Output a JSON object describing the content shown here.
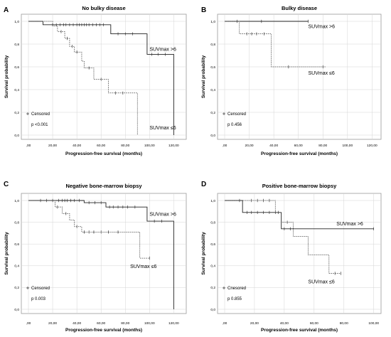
{
  "shared": {
    "ylabel": "Survival probability",
    "xlabel": "Progression-free survival (months)",
    "xticks": [
      0,
      20,
      40,
      60,
      80,
      100,
      120
    ],
    "xtick_labels": [
      ",00",
      "20,00",
      "40,00",
      "60,00",
      "80,00",
      "100,00",
      "120,00"
    ],
    "yticks": [
      0,
      0.2,
      0.4,
      0.6,
      0.8,
      1.0
    ],
    "ytick_labels": [
      "0,0",
      "0,2",
      "0,4",
      "0,6",
      "0,8",
      "1,0"
    ]
  },
  "chart_data": [
    {
      "type": "line",
      "letter": "A",
      "title": "No bulky disease",
      "xlabel": "Progression-free survival (months)",
      "ylabel": "Survival probability",
      "xlim": [
        0,
        128
      ],
      "ylim": [
        0,
        1
      ],
      "grid": true,
      "legend_text": "Censored",
      "p_text": "p <0.001",
      "series": [
        {
          "name": "SUVmax >6",
          "style": "solid",
          "steps": [
            [
              0,
              1.0
            ],
            [
              12,
              0.97
            ],
            [
              68,
              0.89
            ],
            [
              98,
              0.71
            ],
            [
              120,
              0.0
            ]
          ],
          "censored": [
            [
              20,
              0.97
            ],
            [
              23,
              0.97
            ],
            [
              26,
              0.97
            ],
            [
              29,
              0.97
            ],
            [
              31,
              0.97
            ],
            [
              34,
              0.97
            ],
            [
              37,
              0.97
            ],
            [
              40,
              0.97
            ],
            [
              42,
              0.97
            ],
            [
              44,
              0.97
            ],
            [
              46,
              0.97
            ],
            [
              48,
              0.97
            ],
            [
              50,
              0.97
            ],
            [
              53,
              0.97
            ],
            [
              56,
              0.97
            ],
            [
              59,
              0.97
            ],
            [
              62,
              0.97
            ],
            [
              74,
              0.89
            ],
            [
              80,
              0.89
            ],
            [
              86,
              0.89
            ],
            [
              102,
              0.71
            ],
            [
              107,
              0.71
            ],
            [
              113,
              0.71
            ]
          ]
        },
        {
          "name": "SUVmax ≤6",
          "style": "dashed",
          "steps": [
            [
              0,
              1.0
            ],
            [
              20,
              0.96
            ],
            [
              24,
              0.91
            ],
            [
              30,
              0.85
            ],
            [
              34,
              0.78
            ],
            [
              38,
              0.73
            ],
            [
              44,
              0.65
            ],
            [
              46,
              0.59
            ],
            [
              54,
              0.49
            ],
            [
              66,
              0.37
            ],
            [
              90,
              0.0
            ]
          ],
          "censored": [
            [
              27,
              0.91
            ],
            [
              32,
              0.85
            ],
            [
              36,
              0.78
            ],
            [
              40,
              0.73
            ],
            [
              50,
              0.59
            ],
            [
              60,
              0.49
            ],
            [
              72,
              0.37
            ],
            [
              78,
              0.37
            ]
          ]
        }
      ],
      "labels": [
        {
          "text": "SUVmax >6",
          "x": 100,
          "y": 0.74
        },
        {
          "text": "SUVmax ≤6",
          "x": 100,
          "y": 0.05
        }
      ]
    },
    {
      "type": "line",
      "letter": "B",
      "title": "Bulky disease",
      "xlabel": "Progression-free survival (months)",
      "ylabel": "Survival probability",
      "xlim": [
        0,
        125
      ],
      "ylim": [
        0,
        1
      ],
      "grid": true,
      "legend_text": "Censored",
      "p_text": "p 0.456",
      "series": [
        {
          "name": "SUVmax >6",
          "style": "solid",
          "steps": [
            [
              0,
              1.0
            ],
            [
              68,
              1.0
            ]
          ],
          "censored": [
            [
              10,
              1.0
            ],
            [
              30,
              1.0
            ],
            [
              68,
              1.0
            ]
          ]
        },
        {
          "name": "SUVmax ≤6",
          "style": "dashed",
          "steps": [
            [
              0,
              1.0
            ],
            [
              12,
              0.89
            ],
            [
              38,
              0.6
            ],
            [
              82,
              0.6
            ]
          ],
          "censored": [
            [
              18,
              0.89
            ],
            [
              22,
              0.89
            ],
            [
              26,
              0.89
            ],
            [
              32,
              0.89
            ],
            [
              52,
              0.6
            ],
            [
              80,
              0.6
            ]
          ]
        }
      ],
      "labels": [
        {
          "text": "SUVmax >6",
          "x": 68,
          "y": 0.94
        },
        {
          "text": "SUVmax ≤6",
          "x": 68,
          "y": 0.53
        }
      ]
    },
    {
      "type": "line",
      "letter": "C",
      "title": "Negative bone-marrow biopsy",
      "xlabel": "Progression-free survival (months)",
      "ylabel": "Survival probability",
      "xlim": [
        0,
        128
      ],
      "ylim": [
        0,
        1
      ],
      "grid": true,
      "legend_text": "Censored",
      "p_text": "p 0.003",
      "series": [
        {
          "name": "SUVmax >6",
          "style": "solid",
          "steps": [
            [
              0,
              1.0
            ],
            [
              46,
              0.98
            ],
            [
              64,
              0.94
            ],
            [
              98,
              0.81
            ],
            [
              120,
              0.0
            ]
          ],
          "censored": [
            [
              10,
              1.0
            ],
            [
              15,
              1.0
            ],
            [
              20,
              1.0
            ],
            [
              25,
              1.0
            ],
            [
              28,
              1.0
            ],
            [
              30,
              1.0
            ],
            [
              32,
              1.0
            ],
            [
              35,
              1.0
            ],
            [
              38,
              1.0
            ],
            [
              42,
              1.0
            ],
            [
              50,
              0.98
            ],
            [
              55,
              0.98
            ],
            [
              60,
              0.98
            ],
            [
              67,
              0.94
            ],
            [
              70,
              0.94
            ],
            [
              74,
              0.94
            ],
            [
              78,
              0.94
            ],
            [
              82,
              0.94
            ],
            [
              88,
              0.94
            ],
            [
              104,
              0.81
            ],
            [
              110,
              0.81
            ]
          ]
        },
        {
          "name": "SUVmax ≤6",
          "style": "dashed",
          "steps": [
            [
              0,
              1.0
            ],
            [
              22,
              0.94
            ],
            [
              28,
              0.88
            ],
            [
              34,
              0.82
            ],
            [
              38,
              0.76
            ],
            [
              44,
              0.71
            ],
            [
              92,
              0.47
            ],
            [
              100,
              0.47
            ]
          ],
          "censored": [
            [
              24,
              0.94
            ],
            [
              31,
              0.88
            ],
            [
              40,
              0.76
            ],
            [
              46,
              0.71
            ],
            [
              50,
              0.71
            ],
            [
              54,
              0.71
            ],
            [
              60,
              0.71
            ],
            [
              66,
              0.71
            ],
            [
              74,
              0.71
            ],
            [
              100,
              0.47
            ]
          ]
        }
      ],
      "labels": [
        {
          "text": "SUVmax >6",
          "x": 100,
          "y": 0.86
        },
        {
          "text": "SUVmax ≤6",
          "x": 84,
          "y": 0.38
        }
      ]
    },
    {
      "type": "line",
      "letter": "D",
      "title": "Positive bone-marrow biopsy",
      "xlabel": "Progression-free survival (months)",
      "ylabel": "Survival probability",
      "xlim": [
        0,
        103
      ],
      "ylim": [
        0,
        1
      ],
      "grid": true,
      "legend_text": "Cnesored",
      "p_text": "p 0.855",
      "series": [
        {
          "name": "SUVmax >6",
          "style": "solid",
          "steps": [
            [
              0,
              1.0
            ],
            [
              12,
              0.89
            ],
            [
              38,
              0.74
            ],
            [
              100,
              0.74
            ]
          ],
          "censored": [
            [
              15,
              0.89
            ],
            [
              18,
              0.89
            ],
            [
              22,
              0.89
            ],
            [
              26,
              0.89
            ],
            [
              30,
              0.89
            ],
            [
              34,
              0.89
            ],
            [
              40,
              0.74
            ],
            [
              44,
              0.74
            ],
            [
              100,
              0.74
            ]
          ]
        },
        {
          "name": "SUVmax ≤6",
          "style": "dashed",
          "steps": [
            [
              0,
              1.0
            ],
            [
              34,
              0.89
            ],
            [
              38,
              0.8
            ],
            [
              46,
              0.67
            ],
            [
              56,
              0.5
            ],
            [
              70,
              0.33
            ],
            [
              78,
              0.33
            ]
          ],
          "censored": [
            [
              10,
              1.0
            ],
            [
              18,
              1.0
            ],
            [
              22,
              1.0
            ],
            [
              26,
              1.0
            ],
            [
              30,
              1.0
            ],
            [
              36,
              0.89
            ],
            [
              42,
              0.8
            ],
            [
              74,
              0.33
            ],
            [
              78,
              0.33
            ]
          ]
        }
      ],
      "labels": [
        {
          "text": "SUVmax >6",
          "x": 75,
          "y": 0.77
        },
        {
          "text": "SUVmax ≤6",
          "x": 56,
          "y": 0.24
        }
      ]
    }
  ]
}
